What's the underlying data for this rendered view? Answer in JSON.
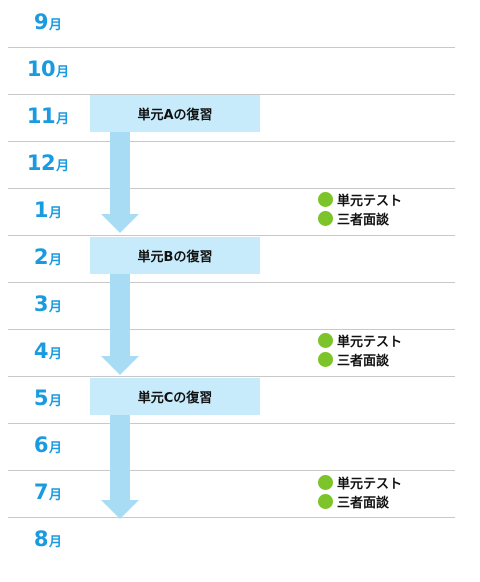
{
  "month_unit": "月",
  "months": [
    {
      "num": "9"
    },
    {
      "num": "10"
    },
    {
      "num": "11"
    },
    {
      "num": "12"
    },
    {
      "num": "1"
    },
    {
      "num": "2"
    },
    {
      "num": "3"
    },
    {
      "num": "4"
    },
    {
      "num": "5"
    },
    {
      "num": "6"
    },
    {
      "num": "7"
    },
    {
      "num": "8"
    }
  ],
  "reviews": [
    {
      "label": "単元Aの復習"
    },
    {
      "label": "単元Bの復習"
    },
    {
      "label": "単元Cの復習"
    }
  ],
  "events": [
    {
      "items": [
        "単元テスト",
        "三者面談"
      ]
    },
    {
      "items": [
        "単元テスト",
        "三者面談"
      ]
    },
    {
      "items": [
        "単元テスト",
        "三者面談"
      ]
    }
  ],
  "colors": {
    "month_text": "#1a9be0",
    "review_box": "#c8ebfb",
    "arrow": "#a8dcf5",
    "event_dot": "#7dc42b",
    "divider": "#c8c8c8"
  }
}
